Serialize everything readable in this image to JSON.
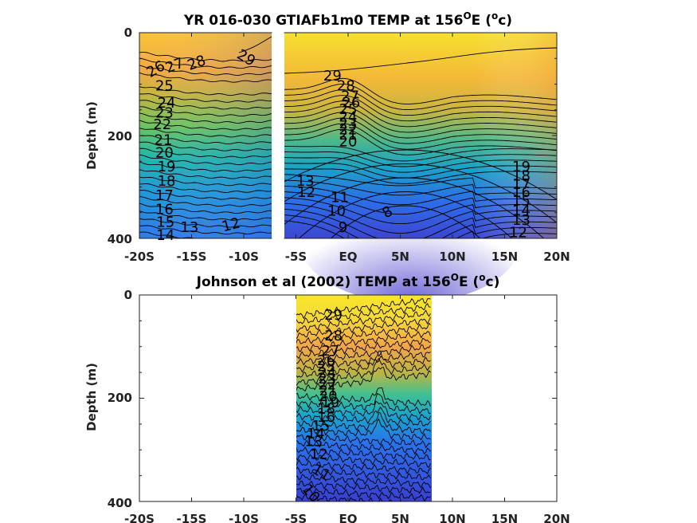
{
  "chart_data": [
    {
      "type": "heatmap",
      "title": "YR 016-030 GTIAFb1m0 TEMP at 156",
      "title_superscript": "O",
      "title_suffix": "E (",
      "title_unit_sup": "o",
      "title_unit": "c)",
      "ylabel": "Depth (m)",
      "xlabel": "",
      "x_ticks": [
        "-20S",
        "-15S",
        "-10S",
        "-5S",
        "EQ",
        "5N",
        "10N",
        "15N",
        "20N"
      ],
      "y_ticks": [
        "0",
        "200",
        "400"
      ],
      "xlim": [
        -20,
        20
      ],
      "ylim": [
        0,
        400
      ],
      "y_reversed": true,
      "colormap": "parula",
      "gap_x": [
        -7.5,
        -6.8
      ],
      "contour_labels": [
        {
          "text": "29",
          "x": -9.8,
          "y": 50,
          "rot": 30
        },
        {
          "text": "28",
          "x": -14.5,
          "y": 60,
          "rot": -20
        },
        {
          "text": "27",
          "x": -16.6,
          "y": 65,
          "rot": -20
        },
        {
          "text": "26",
          "x": -18.4,
          "y": 72,
          "rot": -30
        },
        {
          "text": "25",
          "x": -17.6,
          "y": 105,
          "rot": 0
        },
        {
          "text": "24",
          "x": -17.4,
          "y": 138,
          "rot": 0
        },
        {
          "text": "23",
          "x": -17.6,
          "y": 157,
          "rot": 0
        },
        {
          "text": "22",
          "x": -17.8,
          "y": 180,
          "rot": 0
        },
        {
          "text": "21",
          "x": -17.7,
          "y": 210,
          "rot": 0
        },
        {
          "text": "20",
          "x": -17.6,
          "y": 235,
          "rot": 0
        },
        {
          "text": "19",
          "x": -17.4,
          "y": 262,
          "rot": 0
        },
        {
          "text": "18",
          "x": -17.4,
          "y": 290,
          "rot": 0
        },
        {
          "text": "17",
          "x": -17.6,
          "y": 318,
          "rot": 0
        },
        {
          "text": "16",
          "x": -17.6,
          "y": 345,
          "rot": 0
        },
        {
          "text": "15",
          "x": -17.5,
          "y": 370,
          "rot": 0
        },
        {
          "text": "14",
          "x": -17.5,
          "y": 395,
          "rot": 0
        },
        {
          "text": "13",
          "x": -15.2,
          "y": 380,
          "rot": 0
        },
        {
          "text": "12",
          "x": -11.2,
          "y": 375,
          "rot": -15
        },
        {
          "text": "29",
          "x": -1.5,
          "y": 85,
          "rot": 0
        },
        {
          "text": "28",
          "x": -0.2,
          "y": 105,
          "rot": 0
        },
        {
          "text": "27",
          "x": 0.2,
          "y": 125,
          "rot": 0
        },
        {
          "text": "26",
          "x": 0.3,
          "y": 137,
          "rot": 0
        },
        {
          "text": "25",
          "x": 0.0,
          "y": 150,
          "rot": 0
        },
        {
          "text": "24",
          "x": 0.0,
          "y": 165,
          "rot": 0
        },
        {
          "text": "23",
          "x": 0.0,
          "y": 178,
          "rot": 0
        },
        {
          "text": "22",
          "x": 0.0,
          "y": 190,
          "rot": 0
        },
        {
          "text": "21",
          "x": 0.0,
          "y": 200,
          "rot": 0
        },
        {
          "text": "20",
          "x": 0.0,
          "y": 213,
          "rot": 0
        },
        {
          "text": "13",
          "x": -4.1,
          "y": 290,
          "rot": 0
        },
        {
          "text": "12",
          "x": -4.0,
          "y": 312,
          "rot": 0
        },
        {
          "text": "11",
          "x": -0.8,
          "y": 322,
          "rot": 0
        },
        {
          "text": "10",
          "x": -1.1,
          "y": 348,
          "rot": 0
        },
        {
          "text": "9",
          "x": -0.5,
          "y": 380,
          "rot": 0
        },
        {
          "text": "8",
          "x": 3.8,
          "y": 350,
          "rot": -30
        },
        {
          "text": "19",
          "x": 16.6,
          "y": 262,
          "rot": 0
        },
        {
          "text": "18",
          "x": 16.6,
          "y": 280,
          "rot": 0
        },
        {
          "text": "17",
          "x": 16.6,
          "y": 296,
          "rot": 0
        },
        {
          "text": "16",
          "x": 16.6,
          "y": 312,
          "rot": 0
        },
        {
          "text": "15",
          "x": 16.6,
          "y": 328,
          "rot": 0
        },
        {
          "text": "14",
          "x": 16.6,
          "y": 347,
          "rot": 0
        },
        {
          "text": "13",
          "x": 16.6,
          "y": 366,
          "rot": 0
        },
        {
          "text": "12",
          "x": 16.3,
          "y": 390,
          "rot": 0
        }
      ]
    },
    {
      "type": "heatmap",
      "title": "Johnson et al (2002) TEMP at 156",
      "title_superscript": "O",
      "title_suffix": "E (",
      "title_unit_sup": "o",
      "title_unit": "c)",
      "ylabel": "Depth (m)",
      "xlabel": "",
      "x_ticks": [
        "-20S",
        "-15S",
        "-10S",
        "-5S",
        "EQ",
        "5N",
        "10N",
        "15N",
        "20N"
      ],
      "y_ticks": [
        "0",
        "200",
        "400"
      ],
      "xlim": [
        -20,
        20
      ],
      "ylim": [
        0,
        400
      ],
      "y_reversed": true,
      "colormap": "parula",
      "data_xrange": [
        -5,
        8
      ],
      "contour_labels": [
        {
          "text": "29",
          "x": -1.4,
          "y": 40,
          "rot": 0
        },
        {
          "text": "28",
          "x": -1.4,
          "y": 80,
          "rot": 0
        },
        {
          "text": "27",
          "x": -1.7,
          "y": 110,
          "rot": 0
        },
        {
          "text": "26",
          "x": -2.1,
          "y": 128,
          "rot": 0
        },
        {
          "text": "25",
          "x": -2.1,
          "y": 140,
          "rot": 0
        },
        {
          "text": "24",
          "x": -2.0,
          "y": 152,
          "rot": 0
        },
        {
          "text": "23",
          "x": -2.0,
          "y": 164,
          "rot": 0
        },
        {
          "text": "22",
          "x": -2.0,
          "y": 175,
          "rot": 0
        },
        {
          "text": "21",
          "x": -1.9,
          "y": 187,
          "rot": 0
        },
        {
          "text": "20",
          "x": -1.9,
          "y": 198,
          "rot": 0
        },
        {
          "text": "19",
          "x": -1.7,
          "y": 210,
          "rot": 0
        },
        {
          "text": "18",
          "x": -2.1,
          "y": 222,
          "rot": 0
        },
        {
          "text": "16",
          "x": -2.1,
          "y": 238,
          "rot": 0
        },
        {
          "text": "15",
          "x": -2.6,
          "y": 255,
          "rot": 0
        },
        {
          "text": "14",
          "x": -3.1,
          "y": 270,
          "rot": 0
        },
        {
          "text": "13",
          "x": -3.3,
          "y": 285,
          "rot": 0
        },
        {
          "text": "12",
          "x": -2.8,
          "y": 310,
          "rot": 0
        },
        {
          "text": "11",
          "x": -2.6,
          "y": 345,
          "rot": 30
        },
        {
          "text": "10",
          "x": -3.6,
          "y": 385,
          "rot": 50
        }
      ]
    }
  ]
}
